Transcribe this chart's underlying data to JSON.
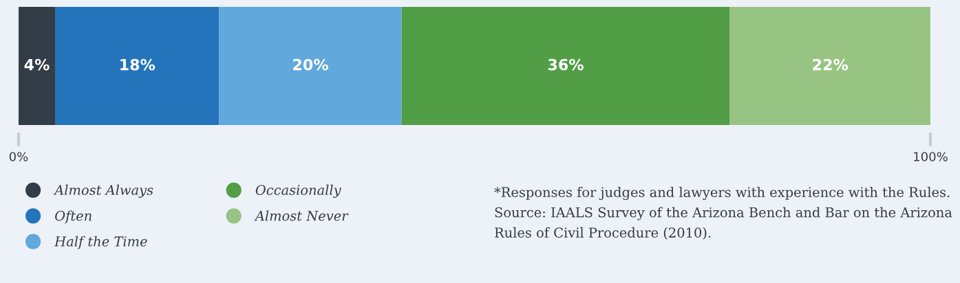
{
  "chart_data": {
    "type": "bar",
    "orientation": "horizontal",
    "stacked": true,
    "categories": [
      null
    ],
    "series": [
      {
        "name": "Almost Always",
        "color": "#333d47",
        "values": [
          4
        ],
        "value_labels": [
          "4%"
        ]
      },
      {
        "name": "Often",
        "color": "#2474bc",
        "values": [
          18
        ],
        "value_labels": [
          "18%"
        ]
      },
      {
        "name": "Half the Time",
        "color": "#61a8dc",
        "values": [
          20
        ],
        "value_labels": [
          "20%"
        ]
      },
      {
        "name": "Occasionally",
        "color": "#519e47",
        "values": [
          36
        ],
        "value_labels": [
          "36%"
        ]
      },
      {
        "name": "Almost Never",
        "color": "#97c482",
        "values": [
          22
        ],
        "value_labels": [
          "22%"
        ]
      }
    ],
    "xlim": [
      0,
      100
    ],
    "xticks": [
      {
        "value": 0,
        "label": "0%"
      },
      {
        "value": 100,
        "label": "100%"
      }
    ],
    "grid": false,
    "legend": "bottom left",
    "annotations": [
      "*Responses for judges and lawyers with experience with the Rules. Source: IAALS Survey of the Arizona Bench and Bar on the Arizona Rules of Civil Procedure (2010)."
    ]
  }
}
